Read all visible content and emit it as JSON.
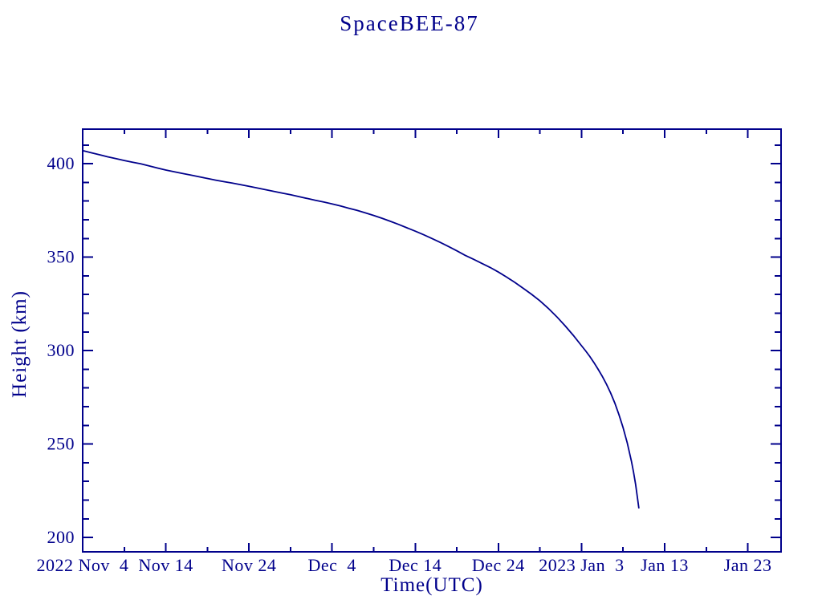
{
  "title": "SpaceBEE-87",
  "axes": {
    "x_label": "Time(UTC)",
    "y_label": "Height (km)"
  },
  "colors": {
    "ink": "#00008b",
    "background": "#ffffff"
  },
  "chart_data": {
    "type": "line",
    "title": "SpaceBEE-87",
    "xlabel": "Time(UTC)",
    "ylabel": "Height (km)",
    "x_unit": "days since 2022-11-04 00:00 UTC",
    "xlim_days": [
      0,
      84
    ],
    "ylim_km": [
      192.3,
      418.5
    ],
    "grid": false,
    "legend": "none",
    "line_color": "#00008b",
    "x_major_ticks": [
      {
        "day": 0,
        "label": "2022 Nov  4"
      },
      {
        "day": 10,
        "label": "Nov 14"
      },
      {
        "day": 20,
        "label": "Nov 24"
      },
      {
        "day": 30,
        "label": "Dec  4"
      },
      {
        "day": 40,
        "label": "Dec 14"
      },
      {
        "day": 50,
        "label": "Dec 24"
      },
      {
        "day": 60,
        "label": "2023 Jan  3"
      },
      {
        "day": 70,
        "label": "Jan 13"
      },
      {
        "day": 80,
        "label": "Jan 23"
      }
    ],
    "x_minor_step_days": 5,
    "y_major_ticks": [
      {
        "km": 400,
        "label": "400"
      },
      {
        "km": 350,
        "label": "350"
      },
      {
        "km": 300,
        "label": "300"
      },
      {
        "km": 250,
        "label": "250"
      },
      {
        "km": 200,
        "label": "200"
      }
    ],
    "y_minor_step_km": 10,
    "points_day_km": [
      [
        0,
        407
      ],
      [
        1,
        405.9
      ],
      [
        2,
        404.8
      ],
      [
        3,
        403.7
      ],
      [
        4,
        402.7
      ],
      [
        5,
        401.7
      ],
      [
        6,
        400.8
      ],
      [
        7,
        399.9
      ],
      [
        8,
        398.8
      ],
      [
        9,
        397.7
      ],
      [
        10,
        396.6
      ],
      [
        11,
        395.7
      ],
      [
        12,
        394.8
      ],
      [
        13,
        393.9
      ],
      [
        14,
        393
      ],
      [
        15,
        392.1
      ],
      [
        16,
        391.2
      ],
      [
        17,
        390.4
      ],
      [
        18,
        389.6
      ],
      [
        19,
        388.8
      ],
      [
        20,
        387.9
      ],
      [
        21,
        387
      ],
      [
        22,
        386.1
      ],
      [
        23,
        385.2
      ],
      [
        24,
        384.3
      ],
      [
        25,
        383.4
      ],
      [
        26,
        382.4
      ],
      [
        27,
        381.4
      ],
      [
        28,
        380.4
      ],
      [
        29,
        379.5
      ],
      [
        30,
        378.5
      ],
      [
        31,
        377.4
      ],
      [
        32,
        376.2
      ],
      [
        33,
        375
      ],
      [
        34,
        373.7
      ],
      [
        35,
        372.3
      ],
      [
        36,
        370.8
      ],
      [
        37,
        369.2
      ],
      [
        38,
        367.5
      ],
      [
        39,
        365.7
      ],
      [
        40,
        363.9
      ],
      [
        41,
        362
      ],
      [
        42,
        360
      ],
      [
        43,
        357.9
      ],
      [
        44,
        355.7
      ],
      [
        45,
        353.4
      ],
      [
        46,
        351
      ],
      [
        47,
        348.9
      ],
      [
        48,
        346.7
      ],
      [
        49,
        344.5
      ],
      [
        50,
        342
      ],
      [
        51,
        339.3
      ],
      [
        52,
        336.4
      ],
      [
        53,
        333.3
      ],
      [
        54,
        330.1
      ],
      [
        55,
        326.6
      ],
      [
        56,
        322.6
      ],
      [
        57,
        318.2
      ],
      [
        58,
        313.4
      ],
      [
        59,
        308.2
      ],
      [
        60,
        302.6
      ],
      [
        60.5,
        299.8
      ],
      [
        61,
        296.8
      ],
      [
        61.5,
        293.5
      ],
      [
        62,
        290
      ],
      [
        62.5,
        286.2
      ],
      [
        63,
        282
      ],
      [
        63.5,
        277.3
      ],
      [
        64,
        271.9
      ],
      [
        64.5,
        265.8
      ],
      [
        65,
        258.8
      ],
      [
        65.5,
        250.6
      ],
      [
        66,
        240.8
      ],
      [
        66.25,
        235
      ],
      [
        66.5,
        228.4
      ],
      [
        66.75,
        220.6
      ],
      [
        66.9,
        215.5
      ]
    ]
  }
}
